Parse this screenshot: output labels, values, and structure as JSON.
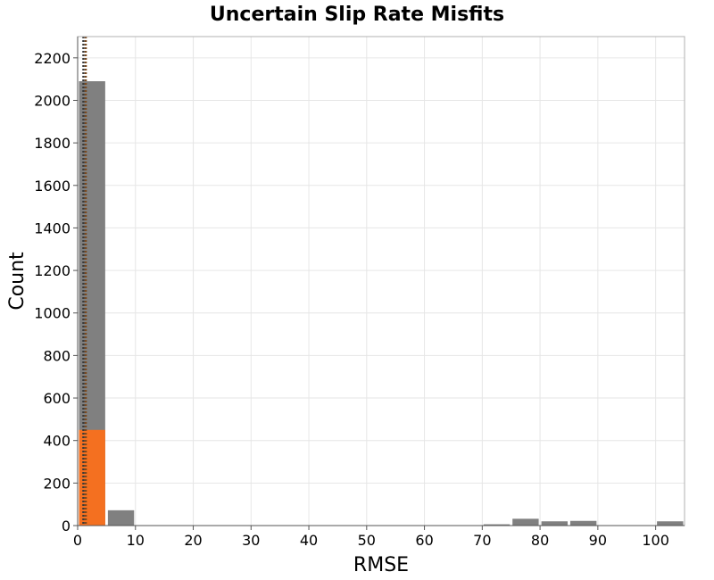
{
  "chart_data": {
    "type": "bar",
    "title": "Uncertain Slip Rate Misfits",
    "xlabel": "RMSE",
    "ylabel": "Count",
    "xlim": [
      0,
      105
    ],
    "ylim": [
      0,
      2300
    ],
    "xticks": [
      0,
      10,
      20,
      30,
      40,
      50,
      60,
      70,
      80,
      90,
      100
    ],
    "yticks": [
      0,
      200,
      400,
      600,
      800,
      1000,
      1200,
      1400,
      1600,
      1800,
      2000,
      2200
    ],
    "bin_width": 5,
    "grid": true,
    "series": [
      {
        "color": "#808080",
        "bins": [
          {
            "x0": 0,
            "x1": 5,
            "value": 2090
          },
          {
            "x0": 5,
            "x1": 10,
            "value": 72
          },
          {
            "x0": 10,
            "x1": 15,
            "value": 2
          },
          {
            "x0": 15,
            "x1": 20,
            "value": 1
          },
          {
            "x0": 20,
            "x1": 25,
            "value": 1
          },
          {
            "x0": 25,
            "x1": 30,
            "value": 1
          },
          {
            "x0": 30,
            "x1": 35,
            "value": 1
          },
          {
            "x0": 35,
            "x1": 40,
            "value": 1
          },
          {
            "x0": 40,
            "x1": 45,
            "value": 1
          },
          {
            "x0": 45,
            "x1": 50,
            "value": 1
          },
          {
            "x0": 50,
            "x1": 55,
            "value": 1
          },
          {
            "x0": 55,
            "x1": 60,
            "value": 1
          },
          {
            "x0": 60,
            "x1": 65,
            "value": 1
          },
          {
            "x0": 65,
            "x1": 70,
            "value": 1
          },
          {
            "x0": 70,
            "x1": 75,
            "value": 6
          },
          {
            "x0": 75,
            "x1": 80,
            "value": 32
          },
          {
            "x0": 80,
            "x1": 85,
            "value": 20
          },
          {
            "x0": 85,
            "x1": 90,
            "value": 22
          },
          {
            "x0": 90,
            "x1": 95,
            "value": 1
          },
          {
            "x0": 95,
            "x1": 100,
            "value": 1
          },
          {
            "x0": 100,
            "x1": 105,
            "value": 20
          }
        ]
      },
      {
        "color": "#f47020",
        "bins": [
          {
            "x0": 0,
            "x1": 5,
            "value": 450
          }
        ]
      }
    ],
    "reference_lines": [
      {
        "x": 1.0,
        "color": "#3a3a3a",
        "style": "dotted"
      },
      {
        "x": 1.4,
        "color": "#7a4a20",
        "style": "dotted"
      }
    ]
  }
}
